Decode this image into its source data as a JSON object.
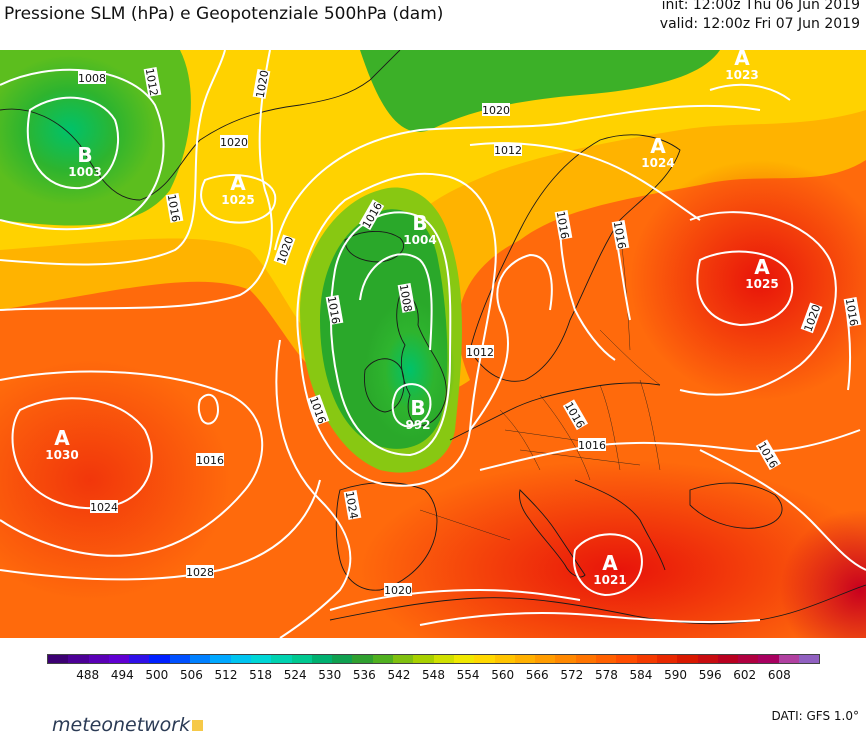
{
  "header": {
    "title": "Pressione SLM (hPa) e Geopotenziale 500hPa (dam)",
    "init": "init: 12:00z Thu 06 Jun 2019",
    "valid": "valid: 12:00z Fri 07 Jun 2019"
  },
  "map": {
    "pressure_centres": [
      {
        "type": "B",
        "value": "1003",
        "region": "greenland-west"
      },
      {
        "type": "A",
        "value": "1025",
        "region": "greenland-southeast"
      },
      {
        "type": "B",
        "value": "1004",
        "region": "north-atlantic-west-of-norway"
      },
      {
        "type": "B",
        "value": "992",
        "region": "southern-ireland"
      },
      {
        "type": "A",
        "value": "1030",
        "region": "mid-atlantic"
      },
      {
        "type": "A",
        "value": "1023",
        "region": "northern-russia"
      },
      {
        "type": "A",
        "value": "1024",
        "region": "northwest-russia"
      },
      {
        "type": "A",
        "value": "1025",
        "region": "western-russia"
      },
      {
        "type": "A",
        "value": "1021",
        "region": "central-mediterranean"
      }
    ],
    "isobar_labels": [
      "1008",
      "1012",
      "1020",
      "1020",
      "1016",
      "1020",
      "1016",
      "1020",
      "1012",
      "1016",
      "1012",
      "1008",
      "1016",
      "1016",
      "1016",
      "1020",
      "1016",
      "1024",
      "1028",
      "1024",
      "1020",
      "1016",
      "1016",
      "1016",
      "1016"
    ]
  },
  "colorbar": {
    "ticks": [
      "488",
      "494",
      "500",
      "506",
      "512",
      "518",
      "524",
      "530",
      "536",
      "542",
      "548",
      "554",
      "560",
      "566",
      "572",
      "578",
      "584",
      "590",
      "596",
      "602",
      "608"
    ],
    "colors": [
      "#3c0073",
      "#4c0096",
      "#5a00b6",
      "#6000d2",
      "#3010e8",
      "#0020ff",
      "#0050ff",
      "#0080ff",
      "#00a8ff",
      "#00c4f0",
      "#00d6d6",
      "#00d2b0",
      "#00c890",
      "#00b070",
      "#10a050",
      "#30a030",
      "#50b020",
      "#80c010",
      "#a8d000",
      "#d0e000",
      "#f0e800",
      "#ffd800",
      "#ffc400",
      "#ffb000",
      "#ff9c00",
      "#ff8800",
      "#ff7400",
      "#ff6000",
      "#ff4c00",
      "#f43a00",
      "#e82800",
      "#d81800",
      "#c80c10",
      "#b80020",
      "#b00040",
      "#a80060",
      "#b040a0",
      "#9060c0"
    ]
  },
  "footer": {
    "logo_text": "meteonetwork",
    "source": "DATI: GFS 1.0°"
  }
}
